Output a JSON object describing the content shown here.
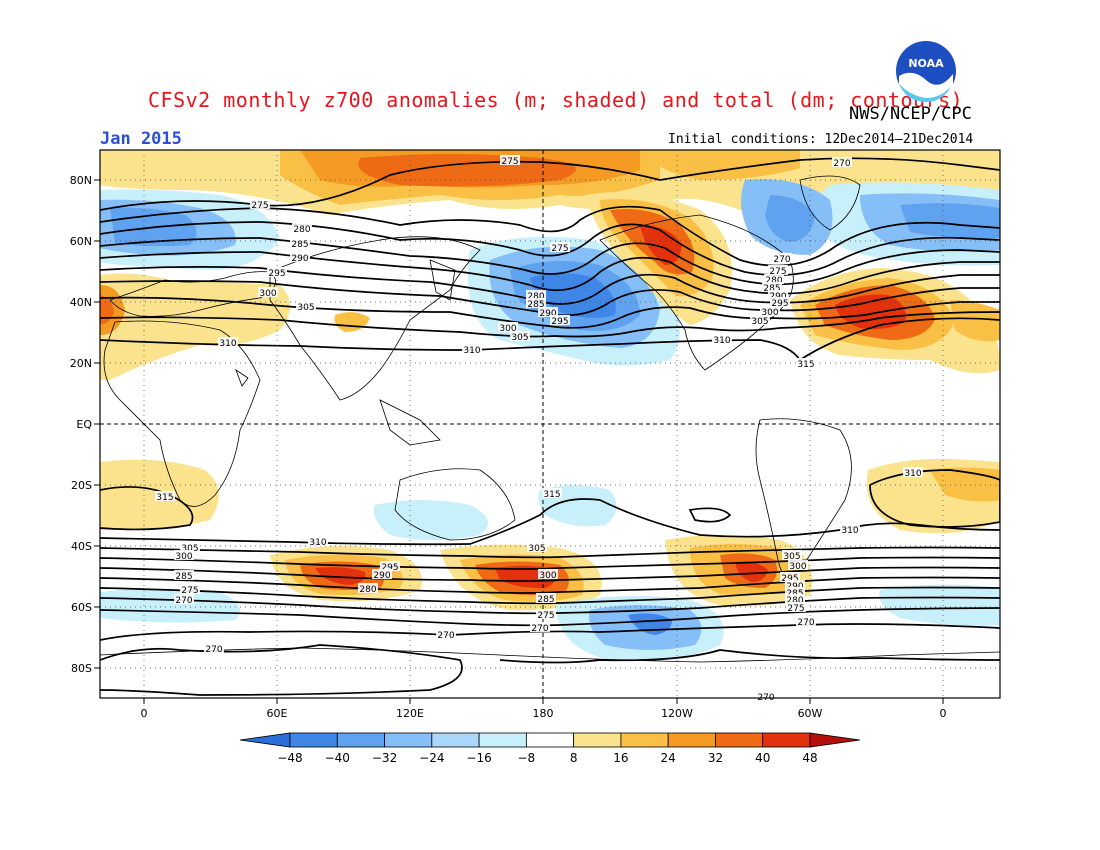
{
  "title": "CFSv2 monthly z700 anomalies (m; shaded) and total (dm; contours)",
  "agency": "NWS/NCEP/CPC",
  "logo_text": "NOAA",
  "month": "Jan 2015",
  "initial_conditions": "Initial conditions: 12Dec2014–21Dec2014",
  "lat_labels": [
    "80N",
    "60N",
    "40N",
    "20N",
    "EQ",
    "20S",
    "40S",
    "60S",
    "80S"
  ],
  "lon_labels": [
    "0",
    "60E",
    "120E",
    "180",
    "120W",
    "60W",
    "0"
  ],
  "colorbar": {
    "labels": [
      "−48",
      "−40",
      "−32",
      "−24",
      "−16",
      "−8",
      "8",
      "16",
      "24",
      "32",
      "40",
      "48"
    ],
    "colors": [
      "#2a6fdb",
      "#3f86e6",
      "#5fa2f0",
      "#86bff7",
      "#aad8fb",
      "#c8f0fb",
      "#ffffff",
      "#fbe38e",
      "#f9c045",
      "#f59a22",
      "#ef6a15",
      "#e3310e",
      "#b3100c"
    ]
  },
  "contour_labels": [
    "275",
    "270",
    "275",
    "280",
    "285",
    "290",
    "295",
    "300",
    "305",
    "310",
    "275",
    "280",
    "285",
    "290",
    "295",
    "300",
    "305",
    "310",
    "270",
    "275",
    "280",
    "285",
    "290",
    "295",
    "300",
    "305",
    "310",
    "315",
    "315",
    "310",
    "315",
    "310",
    "310",
    "305",
    "300",
    "295",
    "290",
    "285",
    "280",
    "275",
    "270",
    "305",
    "300",
    "285",
    "275",
    "270",
    "305",
    "300",
    "295",
    "290",
    "285",
    "280",
    "275",
    "270",
    "270",
    "270",
    "270"
  ]
}
